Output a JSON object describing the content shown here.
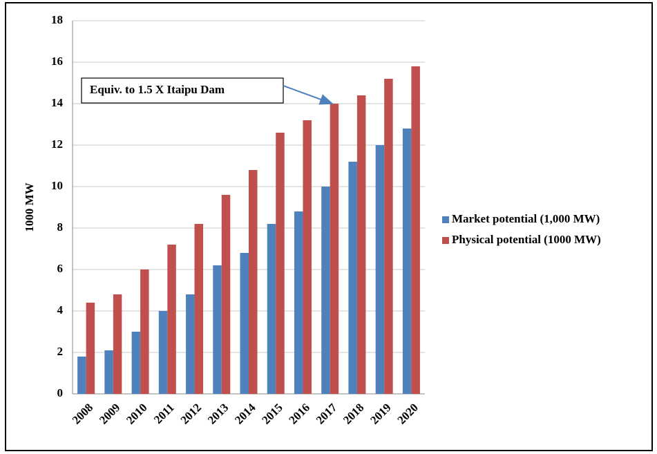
{
  "chart_data": {
    "type": "bar",
    "y_label": "1000 MW",
    "annotation": "Equiv. to 1.5 X Itaipu Dam",
    "categories": [
      "2008",
      "2009",
      "2010",
      "2011",
      "2012",
      "2013",
      "2014",
      "2015",
      "2016",
      "2017",
      "2018",
      "2019",
      "2020"
    ],
    "series": [
      {
        "name": "Market potential (1,000 MW)",
        "color": "#4f81bd",
        "values": [
          1.8,
          2.1,
          3.0,
          4.0,
          4.8,
          6.2,
          6.8,
          8.2,
          8.8,
          10.0,
          11.2,
          12.0,
          12.8
        ]
      },
      {
        "name": "Physical potential (1000 MW)",
        "color": "#c0504d",
        "values": [
          4.4,
          4.8,
          6.0,
          7.2,
          8.2,
          9.6,
          10.8,
          12.6,
          13.2,
          14.0,
          14.4,
          15.2,
          15.8
        ]
      }
    ],
    "ylim": [
      0,
      18
    ],
    "yticks": [
      0,
      2,
      4,
      6,
      8,
      10,
      12,
      14,
      16,
      18
    ],
    "grid": true,
    "legend": "right"
  }
}
